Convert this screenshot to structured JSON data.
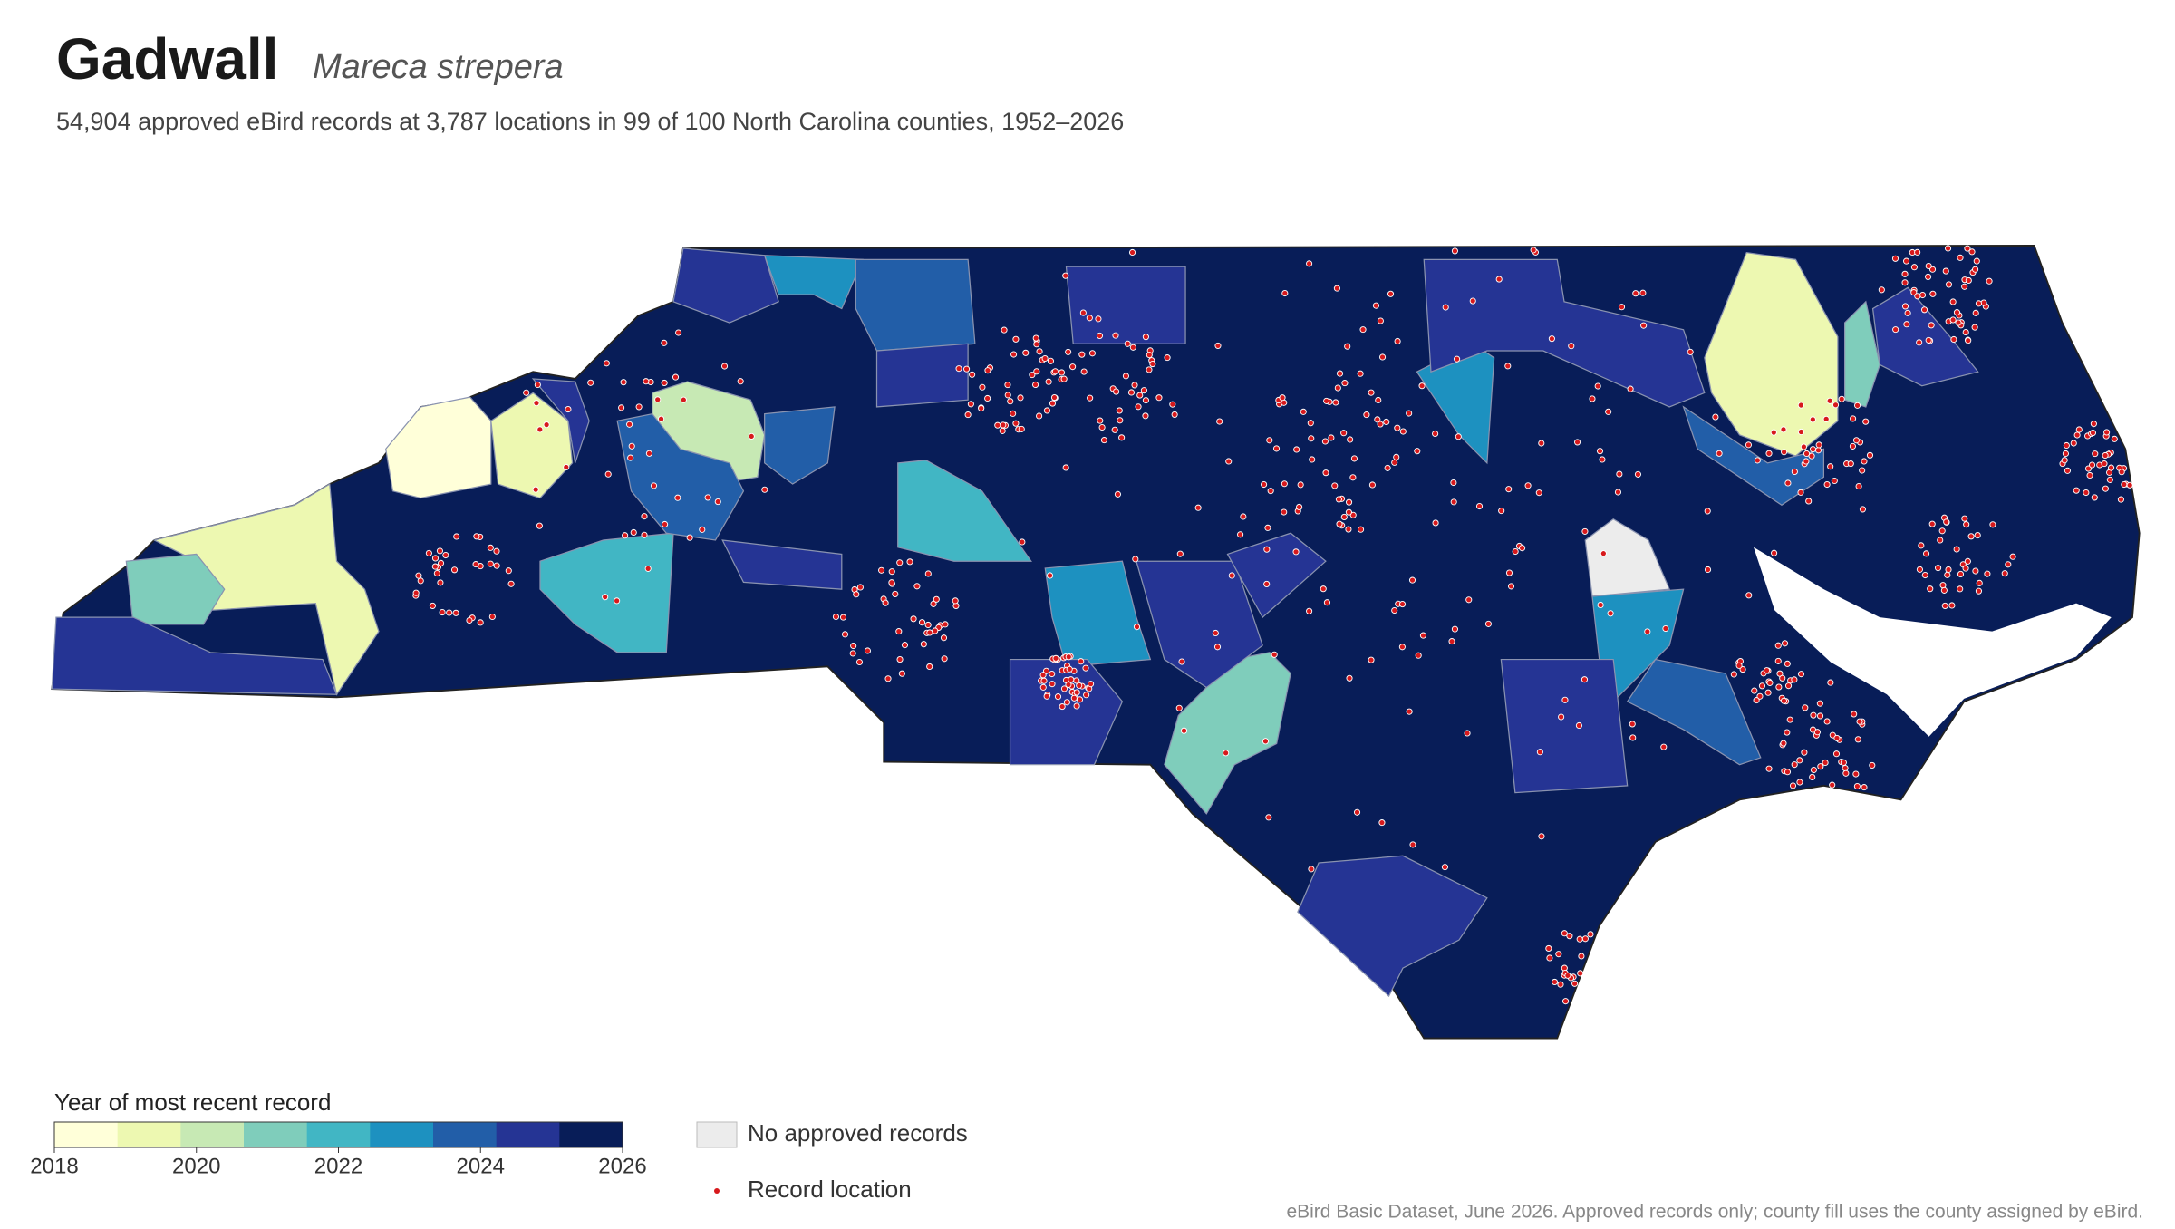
{
  "header": {
    "title": "Gadwall",
    "scientific_name": "Mareca strepera",
    "description": "54,904 approved eBird records at 3,787 locations in 99 of 100 North Carolina counties, 1952–2026"
  },
  "legend": {
    "title": "Year of most recent record",
    "range": [
      2018,
      2026
    ],
    "ticks": [
      2018,
      2020,
      2022,
      2024,
      2026
    ],
    "colors": [
      "#ffffd9",
      "#edf8b1",
      "#c7e9b4",
      "#7fcdbb",
      "#41b6c4",
      "#1d91c0",
      "#225ea8",
      "#253494",
      "#081d58"
    ],
    "no_data_label": "No approved records",
    "no_data_color": "#ececec",
    "record_label": "Record location",
    "record_color": "#d7191c"
  },
  "footnote": "eBird Basic Dataset, June 2026. Approved records only; county fill uses the county assigned by eBird."
}
